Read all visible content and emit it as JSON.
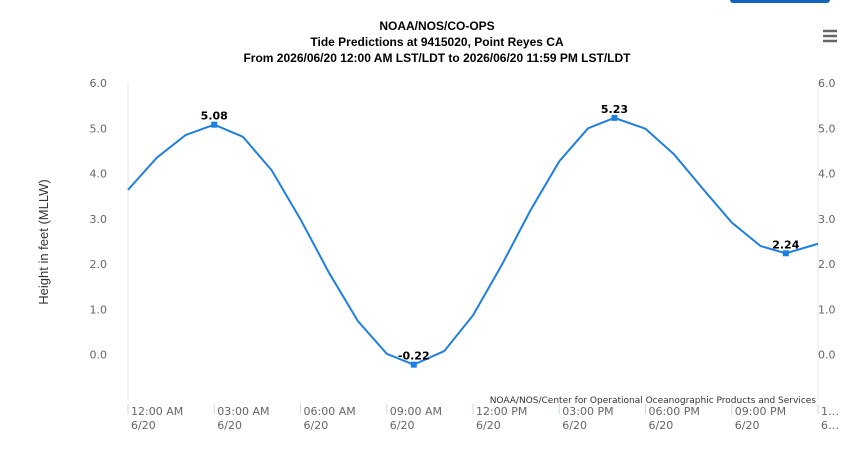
{
  "chart_data": {
    "type": "line",
    "title": "NOAA/NOS/CO-OPS",
    "subtitle": "Tide Predictions at 9415020, Point Reyes CA",
    "subtitle2": "From 2026/06/20 12:00 AM LST/LDT to 2026/06/20 11:59 PM LST/LDT",
    "y_label": "Height in feet (MLLW)",
    "credit": "NOAA/NOS/Center for Operational Oceanographic Products and Services",
    "x": [
      0,
      1,
      2,
      3,
      4,
      5,
      6,
      7,
      8,
      9,
      9.94,
      11,
      12,
      13,
      14,
      15,
      16,
      16.92,
      18,
      19,
      20,
      21,
      22,
      22.88,
      24
    ],
    "series": [
      {
        "color": "#1c7fe3",
        "values": [
          3.64,
          4.35,
          4.85,
          5.08,
          4.81,
          4.07,
          2.99,
          1.8,
          0.74,
          0.02,
          -0.22,
          0.08,
          0.87,
          1.98,
          3.19,
          4.27,
          5.0,
          5.23,
          4.99,
          4.42,
          3.66,
          2.92,
          2.4,
          2.24,
          2.45
        ]
      }
    ],
    "extremes": {
      "x": [
        3,
        9.94,
        16.92,
        22.88
      ],
      "values": [
        5.08,
        -0.22,
        5.23,
        2.24
      ]
    },
    "xlim": [
      0,
      24
    ],
    "xticks": [
      {
        "value": 0,
        "label": "12:00 AM\n6/20"
      },
      {
        "value": 3,
        "label": "03:00 AM\n6/20"
      },
      {
        "value": 6,
        "label": "06:00 AM\n6/20"
      },
      {
        "value": 9,
        "label": "09:00 AM\n6/20"
      },
      {
        "value": 12,
        "label": "12:00 PM\n6/20"
      },
      {
        "value": 15,
        "label": "03:00 PM\n6/20"
      },
      {
        "value": 18,
        "label": "06:00 PM\n6/20"
      },
      {
        "value": 21,
        "label": "09:00 PM\n6/20"
      },
      {
        "value": 24,
        "label": "1…\n6…"
      }
    ],
    "ylim": [
      -1,
      6
    ],
    "yticks": [
      {
        "value": 0,
        "label": "0.0"
      },
      {
        "value": 1,
        "label": "1.0"
      },
      {
        "value": 2,
        "label": "2.0"
      },
      {
        "value": 3,
        "label": "3.0"
      },
      {
        "value": 4,
        "label": "4.0"
      },
      {
        "value": 5,
        "label": "5.0"
      },
      {
        "value": 6,
        "label": "6.0"
      }
    ],
    "right_axis": true
  }
}
